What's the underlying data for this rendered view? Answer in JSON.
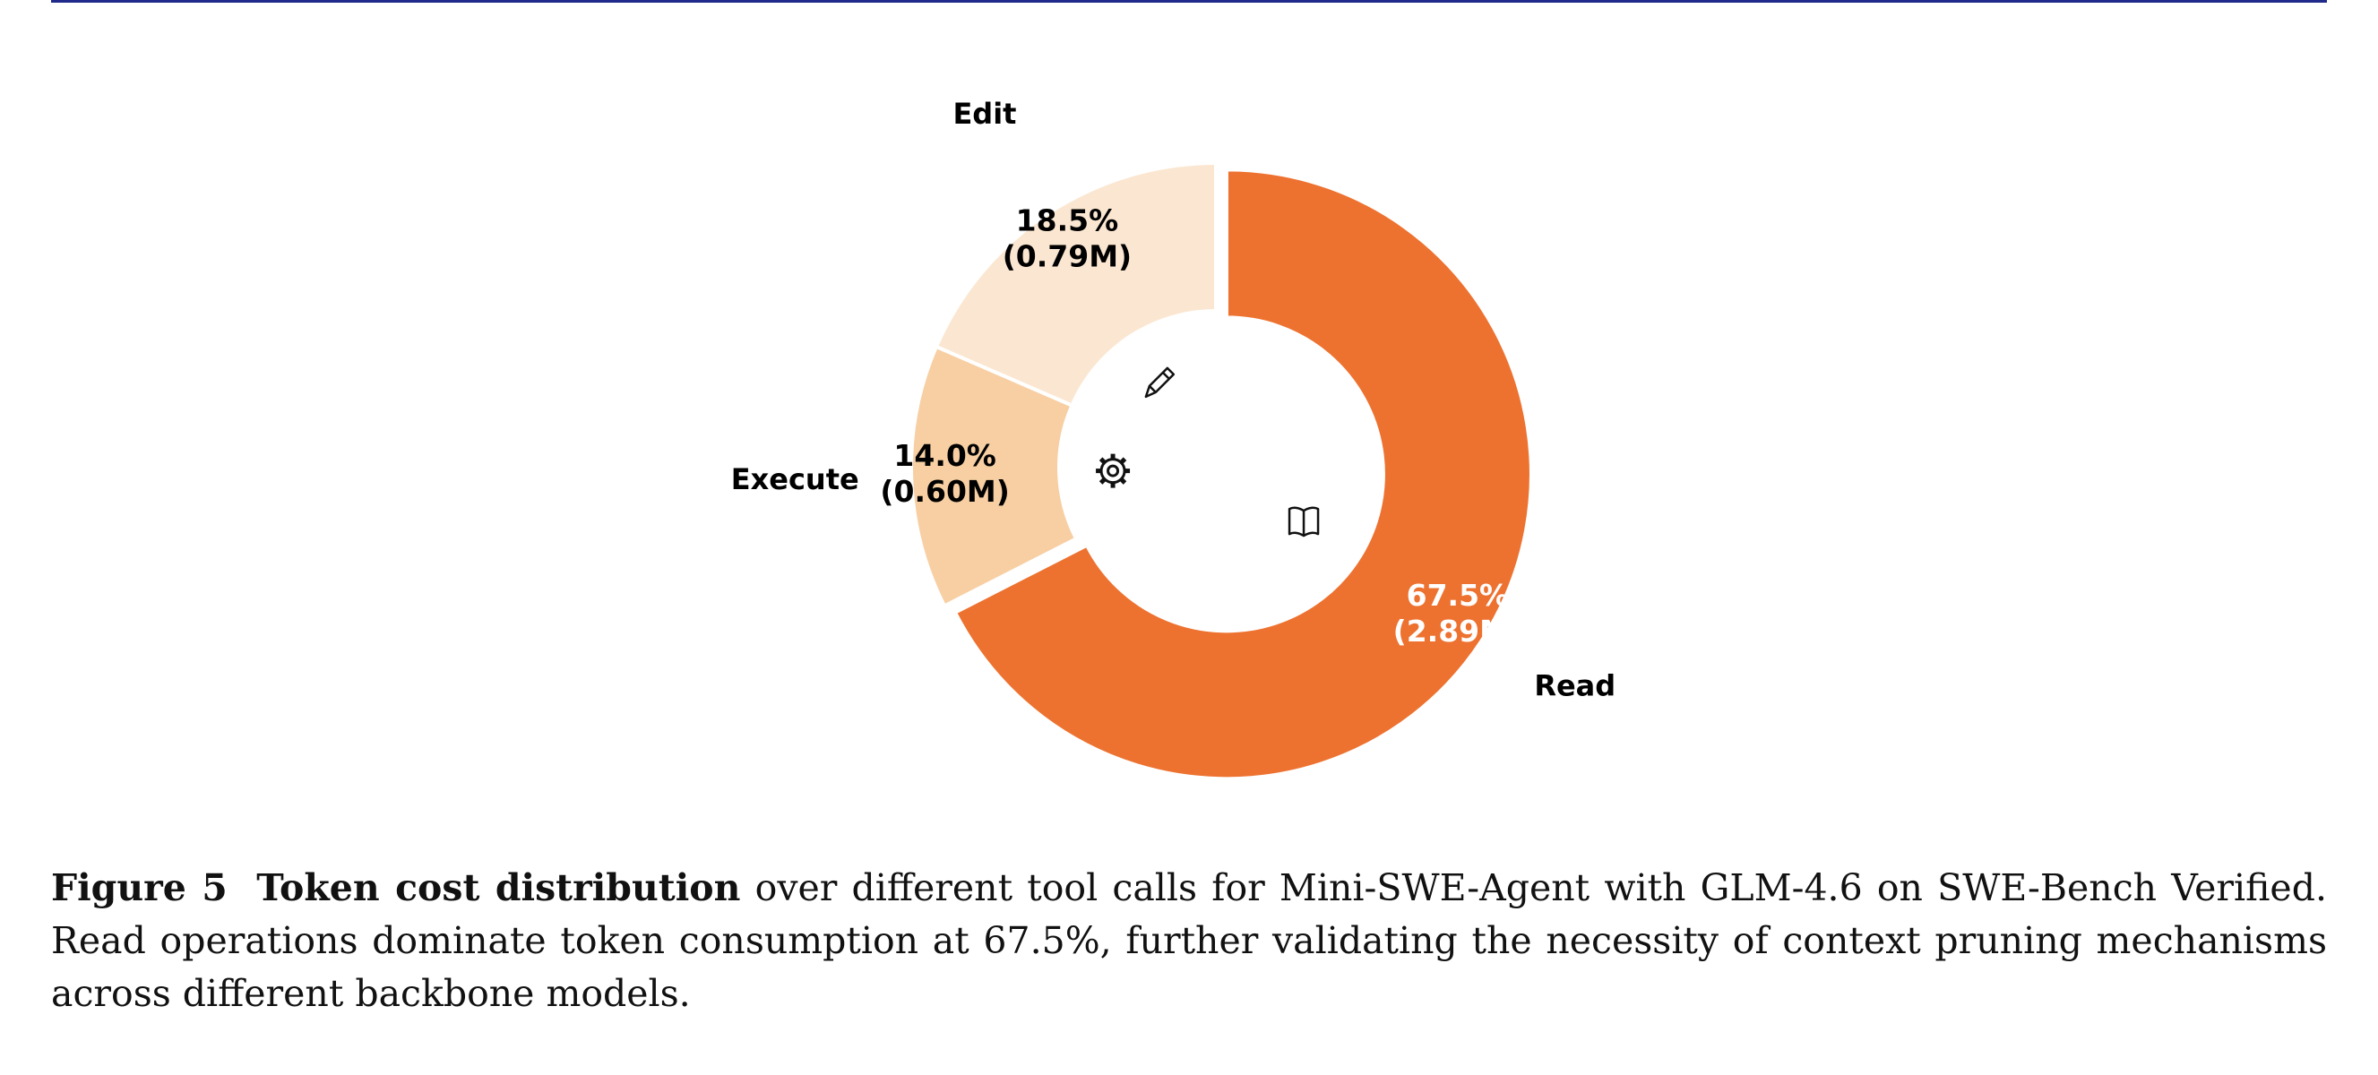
{
  "chart_data": {
    "type": "pie",
    "variant": "donut",
    "title": "",
    "categories": [
      "Read",
      "Execute",
      "Edit"
    ],
    "values": [
      67.5,
      14.0,
      18.5
    ],
    "tokens": [
      "2.89M",
      "0.60M",
      "0.79M"
    ],
    "percent_labels": [
      "67.5%",
      "14.0%",
      "18.5%"
    ],
    "token_labels": [
      "(2.89M)",
      "(0.60M)",
      "(0.79M)"
    ],
    "colors": [
      "#ED7230",
      "#F7CFA3",
      "#FBE7D1"
    ],
    "label_colors": [
      "#ffffff",
      "#000000",
      "#000000"
    ],
    "icons": [
      "book-icon",
      "gear-icon",
      "pencil-icon"
    ],
    "exploded": "Read"
  },
  "caption": {
    "figure_label": "Figure 5",
    "bold_title": "Token cost distribution",
    "text": "over different tool calls for Mini-SWE-Agent with GLM-4.6 on SWE-Bench Verified. Read operations dominate token consumption at 67.5%, further validating the necessity of context pruning mechanisms across different backbone models."
  }
}
